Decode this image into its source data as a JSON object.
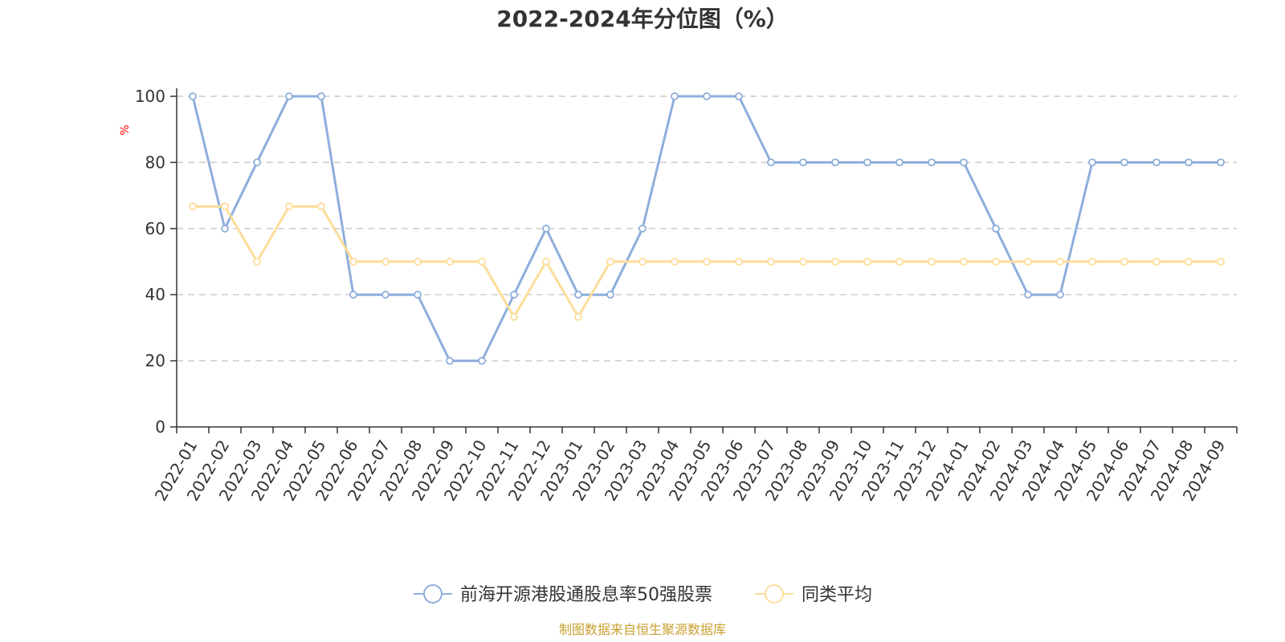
{
  "chart_data": {
    "type": "line",
    "title": "2022-2024年分位图（%）",
    "ylabel": "%",
    "ylim": [
      0,
      100
    ],
    "yticks": [
      0,
      20,
      40,
      60,
      80,
      100
    ],
    "grid": true,
    "legend_position": "bottom",
    "x": [
      "2022-01",
      "2022-02",
      "2022-03",
      "2022-04",
      "2022-05",
      "2022-06",
      "2022-07",
      "2022-08",
      "2022-09",
      "2022-10",
      "2022-11",
      "2022-12",
      "2023-01",
      "2023-02",
      "2023-03",
      "2023-04",
      "2023-05",
      "2023-06",
      "2023-07",
      "2023-08",
      "2023-09",
      "2023-10",
      "2023-11",
      "2023-12",
      "2024-01",
      "2024-02",
      "2024-03",
      "2024-04",
      "2024-05",
      "2024-06",
      "2024-07",
      "2024-08",
      "2024-09"
    ],
    "series": [
      {
        "name": "前海开源港股通股息率50强股票",
        "color": "#8eaedc",
        "values": [
          100,
          60,
          80,
          100,
          100,
          40,
          40,
          40,
          20,
          20,
          40,
          60,
          40,
          40,
          60,
          100,
          100,
          100,
          80,
          80,
          80,
          80,
          80,
          80,
          80,
          60,
          40,
          40,
          80,
          80,
          80,
          80,
          80
        ]
      },
      {
        "name": "同类平均",
        "color": "#fddd9a",
        "values": [
          66.7,
          66.7,
          50,
          66.7,
          66.7,
          50,
          50,
          50,
          50,
          50,
          33.3,
          50,
          33.3,
          50,
          50,
          50,
          50,
          50,
          50,
          50,
          50,
          50,
          50,
          50,
          50,
          50,
          50,
          50,
          50,
          50,
          50,
          50,
          50
        ]
      }
    ],
    "source_text": "制图数据来自恒生聚源数据库"
  },
  "colors": {
    "axis": "#333333",
    "grid": "#cccccc",
    "ylabel": "#ff0000",
    "source": "#c8a030"
  }
}
